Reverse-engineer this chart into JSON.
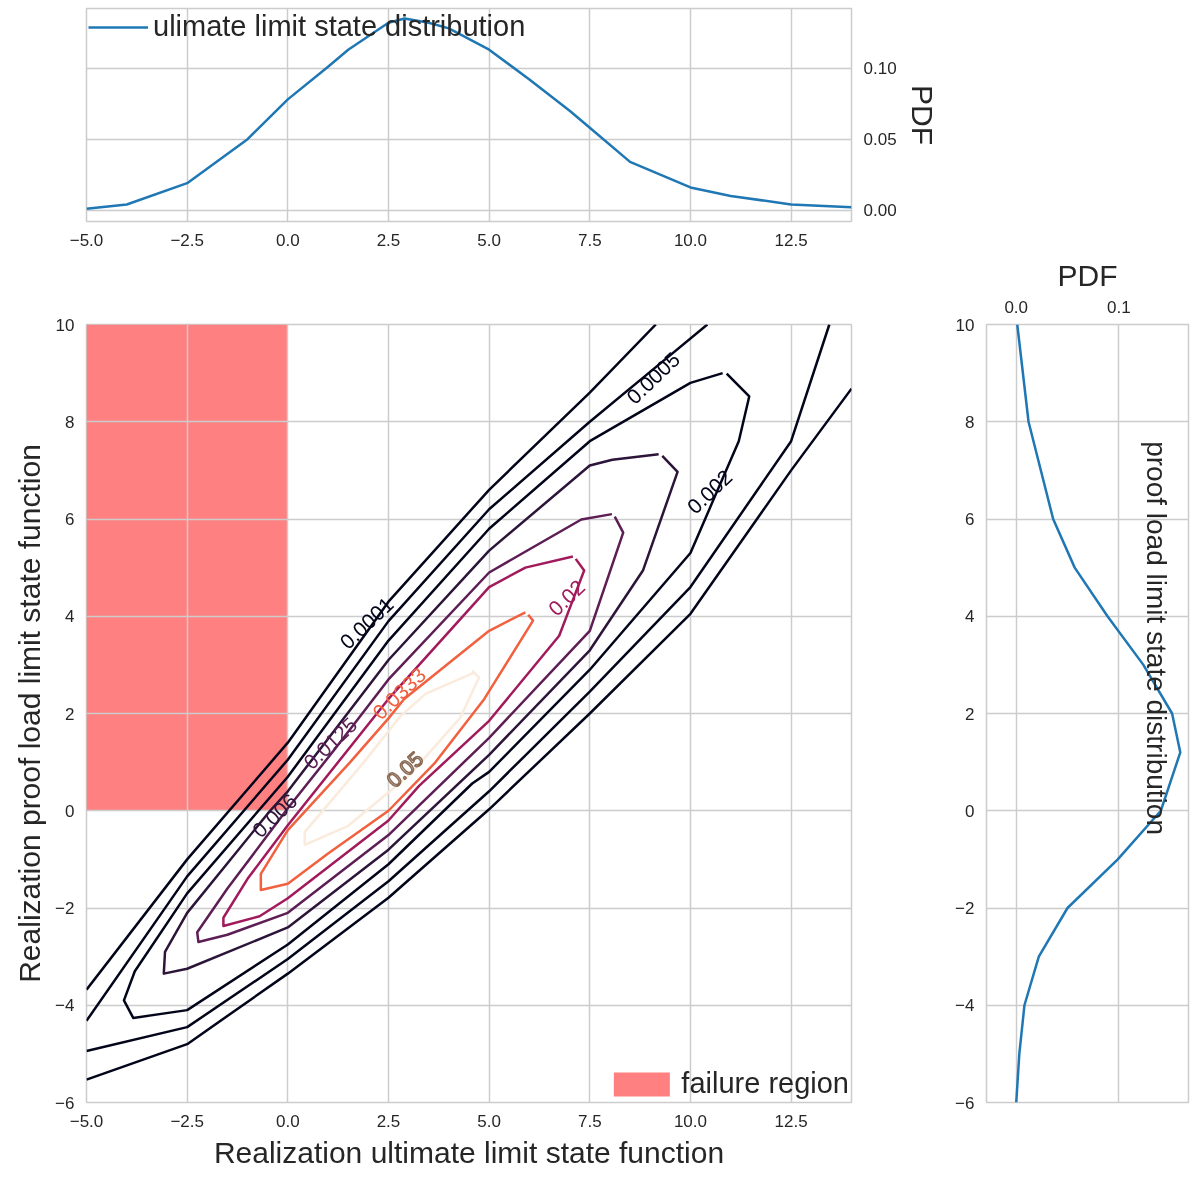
{
  "chart_data": [
    {
      "type": "line",
      "xlim": [
        -5,
        14
      ],
      "xticks": [
        {
          "value": -5,
          "label": "−5.0"
        },
        {
          "value": -2.5,
          "label": "−2.5"
        },
        {
          "value": 0,
          "label": "0.0"
        },
        {
          "value": 2.5,
          "label": "2.5"
        },
        {
          "value": 5,
          "label": "5.0"
        },
        {
          "value": 7.5,
          "label": "7.5"
        },
        {
          "value": 10,
          "label": "10.0"
        },
        {
          "value": 12.5,
          "label": "12.5"
        }
      ],
      "y2lim": [
        -0.008,
        0.142
      ],
      "y2ticks": [
        {
          "value": 0,
          "label": "0.00"
        },
        {
          "value": 0.05,
          "label": "0.05"
        },
        {
          "value": 0.1,
          "label": "0.10"
        }
      ],
      "y2label": "PDF",
      "grid": true,
      "legend": "top left",
      "series": [
        {
          "name": "ulimate limit state distribution",
          "color": "#1f77b4",
          "axis": "y2",
          "x": [
            -5,
            -4,
            -2.5,
            -1,
            0,
            1,
            1.5,
            2.5,
            2.9,
            3.5,
            4,
            5,
            6,
            7,
            7.5,
            8.5,
            10,
            11,
            12.5,
            14
          ],
          "values": [
            0.001,
            0.004,
            0.019,
            0.05,
            0.078,
            0.101,
            0.113,
            0.132,
            0.135,
            0.132,
            0.128,
            0.113,
            0.092,
            0.07,
            0.058,
            0.034,
            0.016,
            0.01,
            0.004,
            0.002
          ]
        }
      ]
    },
    {
      "type": "line",
      "xlim": [
        -5,
        14
      ],
      "xticks": [
        {
          "value": -5,
          "label": "−5.0"
        },
        {
          "value": -2.5,
          "label": "−2.5"
        },
        {
          "value": 0,
          "label": "0.0"
        },
        {
          "value": 2.5,
          "label": "2.5"
        },
        {
          "value": 5,
          "label": "5.0"
        },
        {
          "value": 7.5,
          "label": "7.5"
        },
        {
          "value": 10,
          "label": "10.0"
        },
        {
          "value": 12.5,
          "label": "12.5"
        }
      ],
      "ylim": [
        -6,
        10
      ],
      "yticks": [
        {
          "value": -6,
          "label": "−6"
        },
        {
          "value": -4,
          "label": "−4"
        },
        {
          "value": -2,
          "label": "−2"
        },
        0,
        2,
        4,
        6,
        8,
        10
      ],
      "xlabel": "Realization ultimate limit state function",
      "ylabel": "Realization proof load limit state function",
      "grid": true,
      "legend": "bottom right",
      "annotations": [
        {
          "text": "0.0001",
          "x": 2.08,
          "y": 3.75
        },
        {
          "text": "0.0005",
          "x": 8.96,
          "y": 9.0
        },
        {
          "text": "0.002",
          "x": 10.6,
          "y": 6.45
        },
        {
          "text": "0.006",
          "x": -0.44,
          "y": 0.0
        },
        {
          "text": "0.0125",
          "x": 1.18,
          "y": 1.28
        },
        {
          "text": "0.02",
          "x": 7.05,
          "y": 4.27
        },
        {
          "text": "0.0333",
          "x": 2.89,
          "y": 2.3
        },
        {
          "text": "0.05",
          "x": 3.03,
          "y": 0.74
        }
      ],
      "series": [
        {
          "color": "#03051a",
          "x": [
            9.14,
            7.5,
            5,
            2.5,
            0,
            -2.5,
            -5,
            null,
            -5,
            -2.5,
            0,
            2.5,
            5,
            7.5,
            10,
            12.5,
            14
          ],
          "values": [
            10,
            8.6,
            6.6,
            4.3,
            1.4,
            -1.0,
            -3.68,
            null,
            -5.53,
            -4.8,
            -3.35,
            -1.79,
            0.03,
            2.0,
            4.05,
            7.0,
            8.68
          ]
        },
        {
          "color": "#03051a",
          "x": [
            10.42,
            8.96,
            7.5,
            5,
            2.5,
            0,
            -2.5,
            -5,
            null,
            -5,
            -2.5,
            0,
            2.5,
            5,
            7.5,
            10,
            12.5,
            13.45
          ],
          "values": [
            10,
            9.0,
            8.0,
            6.2,
            3.9,
            1.05,
            -1.35,
            -4.32,
            null,
            -4.94,
            -4.45,
            -3.05,
            -1.45,
            0.4,
            2.45,
            4.6,
            7.6,
            10
          ]
        },
        {
          "color": "#03051a",
          "x": [
            10.8,
            10,
            7.5,
            5,
            2.5,
            0,
            -2.5,
            -3.8,
            -4.07,
            -3.84,
            -2.5,
            0,
            2.5,
            4.58,
            5,
            7.5,
            10,
            10.6,
            11.2,
            11.46,
            10.9
          ],
          "values": [
            9.0,
            8.8,
            7.6,
            5.8,
            3.5,
            0.7,
            -1.7,
            -3.3,
            -3.9,
            -4.26,
            -4.1,
            -2.75,
            -1.1,
            0.56,
            0.8,
            2.9,
            5.3,
            6.45,
            7.6,
            8.52,
            8.99
          ]
        },
        {
          "color": "#2c1539",
          "x": [
            9.21,
            8.06,
            7.5,
            5,
            2.5,
            0,
            -0.44,
            -2.5,
            -3.05,
            -3.08,
            -2.5,
            0,
            2.5,
            5,
            7.5,
            8.82,
            9.68,
            9.3
          ],
          "values": [
            7.33,
            7.22,
            7.1,
            5.35,
            3.1,
            0.4,
            0.0,
            -2.1,
            -2.9,
            -3.35,
            -3.25,
            -2.4,
            -0.8,
            1.15,
            3.3,
            4.94,
            6.97,
            7.3
          ]
        },
        {
          "color": "#5c1e54",
          "x": [
            8.05,
            7.29,
            5,
            2.5,
            1.18,
            0,
            -1.5,
            -2.25,
            -2.22,
            -1.5,
            0,
            2.5,
            5,
            7.5,
            8.33,
            8.12
          ],
          "values": [
            6.1,
            5.99,
            4.9,
            2.7,
            1.28,
            0.05,
            -1.6,
            -2.5,
            -2.7,
            -2.55,
            -2.1,
            -0.5,
            1.5,
            3.7,
            5.72,
            6.05
          ]
        },
        {
          "color": "#a11a5b",
          "x": [
            7.08,
            5.9,
            5,
            2.5,
            0,
            -1.0,
            -1.6,
            -1.6,
            -0.7,
            0,
            2.5,
            3.26,
            5,
            6.74,
            7.05,
            7.36,
            7.15
          ],
          "values": [
            5.23,
            5.0,
            4.6,
            2.3,
            -0.3,
            -1.4,
            -2.2,
            -2.37,
            -2.17,
            -1.8,
            -0.2,
            0.51,
            1.85,
            3.6,
            4.27,
            4.94,
            5.18
          ]
        },
        {
          "color": "#f1603f",
          "x": [
            5.9,
            5,
            2.89,
            2.5,
            1.55,
            0,
            -0.67,
            -0.67,
            0,
            1,
            2.5,
            3.66,
            4.88,
            6.09,
            5.97
          ],
          "values": [
            4.08,
            3.7,
            2.3,
            1.9,
            1.0,
            -0.4,
            -1.3,
            -1.63,
            -1.5,
            -0.88,
            0.0,
            0.99,
            2.3,
            3.91,
            4.03
          ]
        },
        {
          "color": "#faebdd",
          "x": [
            4.58,
            4.75,
            4.28,
            3.03,
            1.5,
            0.42,
            0.42,
            1.88,
            2.78,
            3.43,
            4.63
          ],
          "values": [
            2.88,
            2.74,
            1.91,
            0.74,
            -0.31,
            -0.7,
            -0.44,
            0.99,
            1.93,
            2.41,
            2.84
          ]
        },
        {
          "type": "area",
          "name": "failure region",
          "color": "#ff8080",
          "x": [
            -5,
            0
          ],
          "values": [
            10,
            10
          ]
        }
      ]
    },
    {
      "type": "line",
      "orientation": "horizontal",
      "x2lim": [
        -0.029,
        0.168
      ],
      "x2ticks": [
        {
          "value": 0,
          "label": "0.0"
        },
        {
          "value": 0.1,
          "label": "0.1"
        }
      ],
      "x2label": "PDF",
      "ylim": [
        -6,
        10
      ],
      "yticks": [
        {
          "value": -6,
          "label": "−6"
        },
        {
          "value": -4,
          "label": "−4"
        },
        {
          "value": -2,
          "label": "−2"
        },
        0,
        2,
        4,
        6,
        8,
        10
      ],
      "grid": true,
      "legend": "top right",
      "series": [
        {
          "name": "proof load limit state distribution",
          "color": "#1f77b4",
          "axis": "x2",
          "x": [
            10,
            8,
            6,
            5,
            4,
            3,
            2,
            1.2,
            0,
            -1,
            -2,
            -3,
            -4,
            -5,
            -6
          ],
          "values": [
            0.001,
            0.012,
            0.036,
            0.057,
            0.089,
            0.124,
            0.152,
            0.16,
            0.141,
            0.099,
            0.05,
            0.022,
            0.008,
            0.003,
            0.0
          ]
        }
      ]
    }
  ]
}
